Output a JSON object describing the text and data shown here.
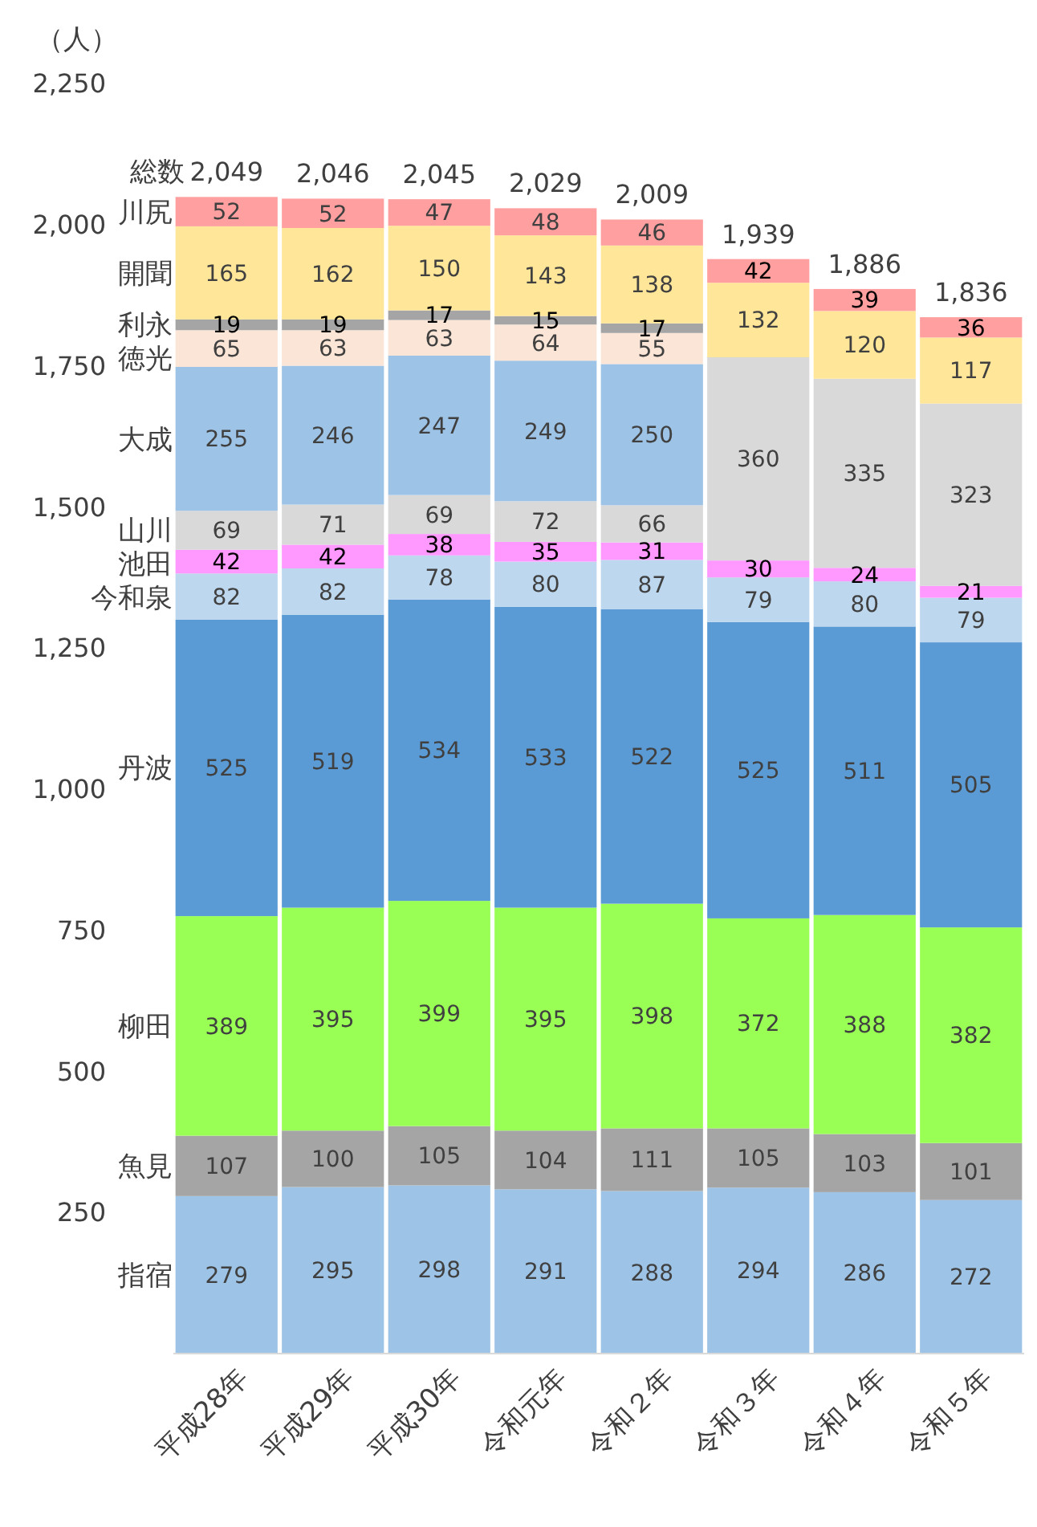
{
  "chart_data": {
    "type": "bar",
    "stacked": true,
    "ylabel": "（人）",
    "categories": [
      "平成28年",
      "平成29年",
      "平成30年",
      "令和元年",
      "令和２年",
      "令和３年",
      "令和４年",
      "令和５年"
    ],
    "series": [
      {
        "name": "指宿",
        "color": "#9dc3e6",
        "values": [
          279,
          295,
          298,
          291,
          288,
          294,
          286,
          272
        ]
      },
      {
        "name": "魚見",
        "color": "#a5a5a5",
        "values": [
          107,
          100,
          105,
          104,
          111,
          105,
          103,
          101
        ]
      },
      {
        "name": "柳田",
        "color": "#99ff55",
        "values": [
          389,
          395,
          399,
          395,
          398,
          372,
          388,
          382
        ]
      },
      {
        "name": "丹波",
        "color": "#5b9bd5",
        "values": [
          525,
          519,
          534,
          533,
          522,
          525,
          511,
          505
        ]
      },
      {
        "name": "今和泉",
        "color": "#bdd7ee",
        "values": [
          82,
          82,
          78,
          80,
          87,
          79,
          80,
          79
        ]
      },
      {
        "name": "池田",
        "color": "#ff99ff",
        "values": [
          42,
          42,
          38,
          35,
          31,
          30,
          24,
          21
        ]
      },
      {
        "name": "山川",
        "color": "#d9d9d9",
        "values": [
          69,
          71,
          69,
          72,
          66,
          360,
          335,
          323
        ]
      },
      {
        "name": "大成",
        "color": "#9dc3e6",
        "values": [
          255,
          246,
          247,
          249,
          250,
          null,
          null,
          null
        ]
      },
      {
        "name": "徳光",
        "color": "#fbe5d6",
        "values": [
          65,
          63,
          63,
          64,
          55,
          null,
          null,
          null
        ]
      },
      {
        "name": "利永",
        "color": "#a5a5a5",
        "values": [
          19,
          19,
          17,
          15,
          17,
          null,
          null,
          null
        ]
      },
      {
        "name": "開聞",
        "color": "#ffe699",
        "values": [
          165,
          162,
          150,
          143,
          138,
          132,
          120,
          117
        ]
      },
      {
        "name": "川尻",
        "color": "#ff9f9f",
        "values": [
          52,
          52,
          47,
          48,
          46,
          42,
          39,
          36
        ]
      }
    ],
    "totals": [
      "2,049",
      "2,046",
      "2,045",
      "2,029",
      "2,009",
      "1,939",
      "1,886",
      "1,836"
    ],
    "annotations": [
      "総数"
    ],
    "data_labels": true,
    "ylim": [
      0,
      2250
    ],
    "yticks": [
      {
        "value": 250,
        "label": "250"
      },
      {
        "value": 500,
        "label": "500"
      },
      {
        "value": 750,
        "label": "750"
      },
      {
        "value": 1000,
        "label": "1,000"
      },
      {
        "value": 1250,
        "label": "1,250"
      },
      {
        "value": 1500,
        "label": "1,500"
      },
      {
        "value": 1750,
        "label": "1,750"
      },
      {
        "value": 2000,
        "label": "2,000"
      },
      {
        "value": 2250,
        "label": "2,250"
      }
    ]
  }
}
